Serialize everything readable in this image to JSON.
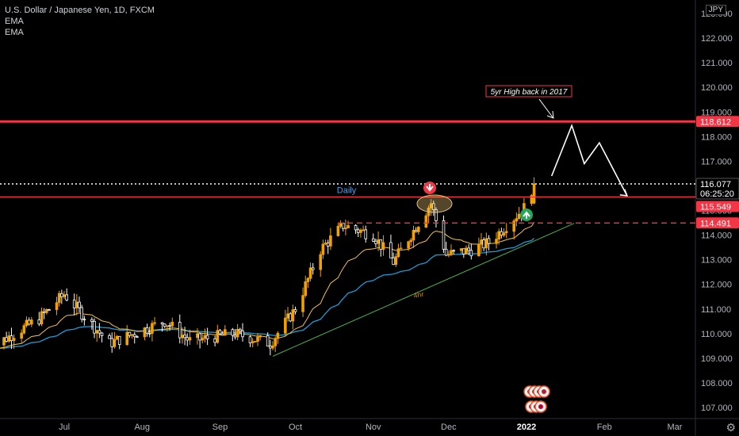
{
  "legend": {
    "symbol_title": "U.S. Dollar / Japanese Yen, 1D, FXCM",
    "indicator_1": "EMA",
    "indicator_2": "EMA"
  },
  "currency_button": "JPY",
  "settings_icon": "gear-icon",
  "labels": {
    "daily": "Daily",
    "four_hour": "4hr",
    "annotation": "5yr High back in 2017"
  },
  "price_tags": [
    {
      "value": "118.612",
      "color": "#f23645"
    },
    {
      "value": "116.077",
      "sub": "06:25:20",
      "color": "#000000"
    },
    {
      "value": "115.549",
      "color": "#f23645"
    },
    {
      "value": "114.491",
      "color": "#f23645"
    }
  ],
  "colors": {
    "background": "#000000",
    "up": "#f0a202",
    "down": "#ffffff",
    "ema_fast": "#f5c242",
    "ema_slow": "#1e9ad6",
    "resistance": "#f23645",
    "trendline": "#4caf50",
    "daily_label": "#4a9fe0"
  },
  "chart_data": {
    "type": "candlestick",
    "y_axis": {
      "ticks": [
        "107.000",
        "108.000",
        "109.000",
        "110.000",
        "111.000",
        "112.000",
        "113.000",
        "114.000",
        "115.000",
        "116.000",
        "117.000",
        "118.000",
        "119.000",
        "120.000",
        "121.000",
        "122.000",
        "123.000"
      ],
      "range": [
        106.6,
        123.4
      ]
    },
    "x_axis": {
      "ticks": [
        "Jul",
        "Aug",
        "Sep",
        "Oct",
        "Nov",
        "Dec",
        "2022",
        "Feb",
        "Mar"
      ],
      "tick_dates": [
        "2021-07-01",
        "2021-08-01",
        "2021-09-01",
        "2021-10-01",
        "2021-11-01",
        "2021-12-01",
        "2022-01-01",
        "2022-02-01",
        "2022-03-01"
      ]
    },
    "horizontal_levels": [
      {
        "price": 118.612,
        "style": "solid",
        "color": "#f23645"
      },
      {
        "price": 116.077,
        "style": "dotted",
        "color": "#ffffff"
      },
      {
        "price": 115.549,
        "style": "solid",
        "color": "#f23645"
      },
      {
        "price": 114.491,
        "style": "dashed",
        "color": "#f23645"
      }
    ],
    "trendline": {
      "start": [
        "2021-09-22",
        109.08
      ],
      "end": [
        "2022-01-20",
        114.48
      ],
      "label": "4hr"
    },
    "projection_path": [
      [
        "2022-01-11",
        116.4
      ],
      [
        "2022-01-19",
        118.45
      ],
      [
        "2022-01-24",
        116.9
      ],
      [
        "2022-01-30",
        117.75
      ],
      [
        "2022-02-10",
        115.6
      ]
    ],
    "ema_fast_end": 114.7,
    "ema_slow_end": 113.9,
    "candles_summary": {
      "start": "2021-06-01",
      "end": "2022-01-05",
      "anchors": [
        [
          "2021-06-01",
          109.4
        ],
        [
          "2021-06-21",
          110.6
        ],
        [
          "2021-07-01",
          111.6
        ],
        [
          "2021-07-19",
          109.6
        ],
        [
          "2021-08-10",
          110.5
        ],
        [
          "2021-08-20",
          109.7
        ],
        [
          "2021-09-07",
          110.0
        ],
        [
          "2021-09-21",
          109.6
        ],
        [
          "2021-10-01",
          111.0
        ],
        [
          "2021-10-11",
          113.4
        ],
        [
          "2021-10-20",
          114.4
        ],
        [
          "2021-11-01",
          114.0
        ],
        [
          "2021-11-09",
          112.9
        ],
        [
          "2021-11-24",
          115.3
        ],
        [
          "2021-11-30",
          113.2
        ],
        [
          "2021-12-10",
          113.4
        ],
        [
          "2021-12-17",
          113.7
        ],
        [
          "2021-12-31",
          115.1
        ],
        [
          "2022-01-04",
          116.1
        ]
      ]
    }
  }
}
